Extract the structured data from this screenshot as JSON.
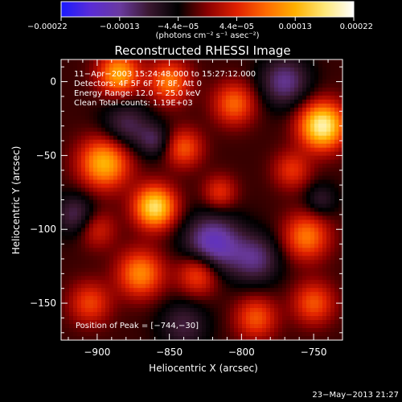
{
  "chart_data": {
    "type": "heatmap",
    "title": "Reconstructed RHESSI Image",
    "xlabel": "Heliocentric X (arcsec)",
    "ylabel": "Heliocentric Y (arcsec)",
    "xlim": [
      -925,
      -730
    ],
    "ylim": [
      -175,
      15
    ],
    "x_ticks": [
      {
        "value": -900,
        "label": "−900"
      },
      {
        "value": -850,
        "label": "−850"
      },
      {
        "value": -800,
        "label": "−800"
      },
      {
        "value": -750,
        "label": "−750"
      }
    ],
    "y_ticks": [
      {
        "value": 0,
        "label": "0"
      },
      {
        "value": -50,
        "label": "−50"
      },
      {
        "value": -100,
        "label": "−100"
      },
      {
        "value": -150,
        "label": "−150"
      }
    ],
    "colorbar": {
      "range": [
        -0.00022,
        0.00022
      ],
      "tick_labels": [
        "−0.00022",
        "−0.00013",
        "−4.4e−05",
        "4.4e−05",
        "0.00013",
        "0.00022"
      ],
      "units": "(photons cm⁻² s⁻¹ asec⁻²)",
      "colors": [
        "#1a1aff",
        "#5a2cd6",
        "#6a3aa0",
        "#3a1830",
        "#000000",
        "#8a0000",
        "#e02000",
        "#ff6a00",
        "#ffb000",
        "#ffe878",
        "#ffffff"
      ]
    },
    "annotations": {
      "time": "11−Apr−2003 15:24:48.000 to 15:27:12.000",
      "detectors": "Detectors: 4F 5F 6F 7F 8F, Att 0",
      "energy": "Energy Range: 12.0 − 25.0 keV",
      "clean": "Clean     Total counts: 1.19E+03",
      "peak": "Position of Peak = [−744,−30]"
    },
    "sources": [
      {
        "x": -744,
        "y": -30,
        "amplitude": 1.0,
        "sigma": 11
      },
      {
        "x": -860,
        "y": -85,
        "amplitude": 0.9,
        "sigma": 10
      },
      {
        "x": -895,
        "y": -55,
        "amplitude": 0.75,
        "sigma": 12
      },
      {
        "x": -885,
        "y": 5,
        "amplitude": 0.7,
        "sigma": 10
      },
      {
        "x": -850,
        "y": 0,
        "amplitude": 0.55,
        "sigma": 10
      },
      {
        "x": -805,
        "y": -15,
        "amplitude": 0.5,
        "sigma": 10
      },
      {
        "x": -840,
        "y": -45,
        "amplitude": 0.45,
        "sigma": 9
      },
      {
        "x": -870,
        "y": -130,
        "amplitude": 0.6,
        "sigma": 11
      },
      {
        "x": -830,
        "y": -130,
        "amplitude": 0.5,
        "sigma": 10
      },
      {
        "x": -790,
        "y": -160,
        "amplitude": 0.45,
        "sigma": 10
      },
      {
        "x": -755,
        "y": -105,
        "amplitude": 0.55,
        "sigma": 11
      },
      {
        "x": -750,
        "y": -150,
        "amplitude": 0.45,
        "sigma": 10
      },
      {
        "x": -815,
        "y": -75,
        "amplitude": 0.35,
        "sigma": 8
      },
      {
        "x": -905,
        "y": -150,
        "amplitude": 0.4,
        "sigma": 10
      },
      {
        "x": -765,
        "y": -60,
        "amplitude": 0.35,
        "sigma": 9
      },
      {
        "x": -900,
        "y": -100,
        "amplitude": 0.3,
        "sigma": 9
      },
      {
        "x": -820,
        "y": -110,
        "amplitude": -0.6,
        "sigma": 14
      },
      {
        "x": -880,
        "y": -30,
        "amplitude": -0.35,
        "sigma": 12
      },
      {
        "x": -770,
        "y": 0,
        "amplitude": -0.45,
        "sigma": 12
      },
      {
        "x": -790,
        "y": -120,
        "amplitude": -0.4,
        "sigma": 12
      },
      {
        "x": -915,
        "y": -90,
        "amplitude": -0.35,
        "sigma": 10
      },
      {
        "x": -840,
        "y": -165,
        "amplitude": -0.3,
        "sigma": 12
      },
      {
        "x": -745,
        "y": -80,
        "amplitude": -0.25,
        "sigma": 8
      },
      {
        "x": -860,
        "y": -40,
        "amplitude": -0.3,
        "sigma": 8
      }
    ]
  },
  "footer": {
    "timestamp": "23−May−2013 21:27"
  }
}
